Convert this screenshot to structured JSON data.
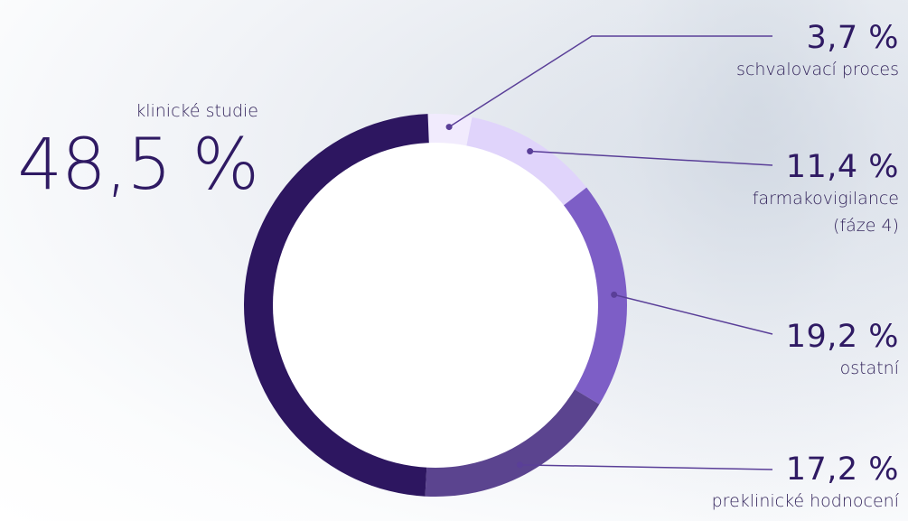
{
  "chart_data": {
    "type": "pie",
    "style": "donut",
    "slices": [
      {
        "label": "schvalovací proces",
        "value": 3.7,
        "display": "3,7 %",
        "color": "#f1ebfd"
      },
      {
        "label": "farmakovigilance (fáze 4)",
        "value": 11.4,
        "display": "11,4 %",
        "color": "#e0d4fb"
      },
      {
        "label": "ostatní",
        "value": 19.2,
        "display": "19,2 %",
        "color": "#7d5ec6"
      },
      {
        "label": "preklinické hodnocení",
        "value": 17.2,
        "display": "17,2 %",
        "color": "#5b448f"
      },
      {
        "label": "klinické studie",
        "value": 48.5,
        "display": "48,5 %",
        "color": "#2d1660"
      }
    ],
    "callouts": {
      "line_color": "#5a3f98"
    }
  },
  "labels": {
    "approval": {
      "pct": "3,7 %",
      "name": "schvalovací proces"
    },
    "pharmacovigilance": {
      "pct": "11,4 %",
      "name": "farmakovigilance (fáze 4)"
    },
    "other": {
      "pct": "19,2 %",
      "name": "ostatní"
    },
    "preclinical": {
      "pct": "17,2 %",
      "name": "preklinické hodnocení"
    },
    "clinical": {
      "pct": "48,5 %",
      "name": "klinické studie"
    }
  }
}
